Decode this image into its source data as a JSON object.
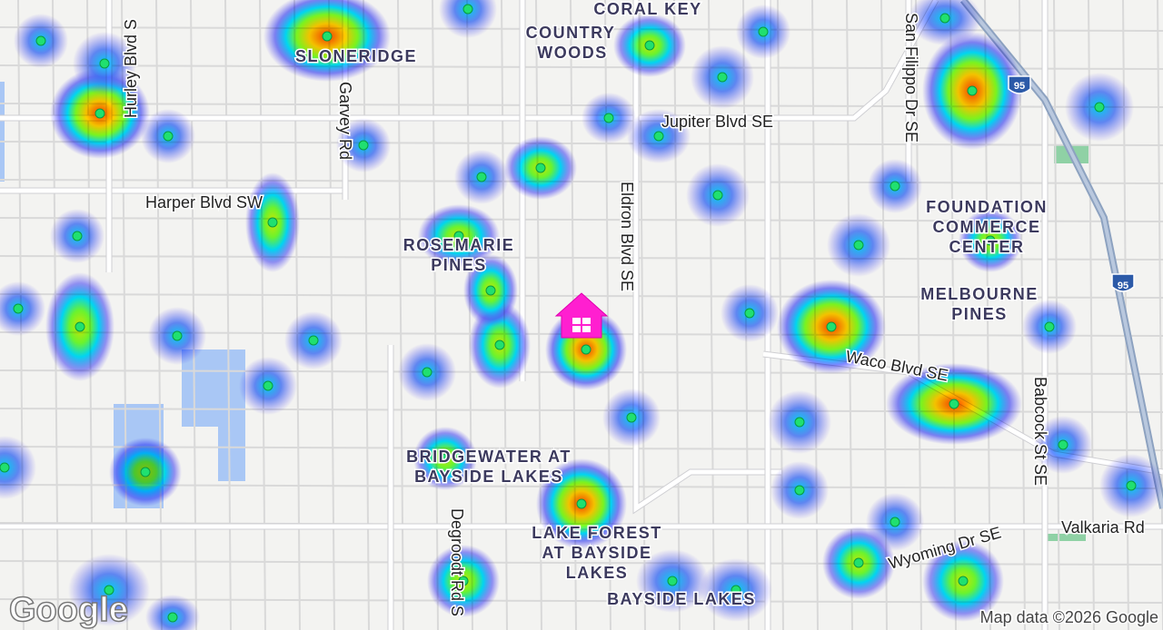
{
  "map": {
    "places": [
      {
        "lines": [
          "CORAL KEY"
        ]
      },
      {
        "lines": [
          "COUNTRY",
          "WOODS"
        ]
      },
      {
        "lines": [
          "SLONERIDGE"
        ]
      },
      {
        "lines": [
          "ROSEMARIE",
          "PINES"
        ]
      },
      {
        "lines": [
          "FOUNDATION",
          "COMMERCE",
          "CENTER"
        ]
      },
      {
        "lines": [
          "MELBOURNE",
          "PINES"
        ]
      },
      {
        "lines": [
          "BRIDGEWATER AT",
          "BAYSIDE LAKES"
        ]
      },
      {
        "lines": [
          "LAKE FOREST",
          "AT BAYSIDE",
          "LAKES"
        ]
      },
      {
        "lines": [
          "BAYSIDE LAKES"
        ]
      }
    ],
    "streets": [
      "Hurley Blvd S",
      "Garvey Rd",
      "Jupiter Blvd SE",
      "Harper Blvd SW",
      "Eldron Blvd SE",
      "San Filippo Dr SE",
      "Waco Blvd SE",
      "Babcock St SE",
      "Degroodt Rd S",
      "Wyoming Dr SE",
      "Valkaria Rd"
    ],
    "highway_shields": [
      "95",
      "95"
    ],
    "logo": "Google",
    "attribution": "Map data ©2026 Google"
  }
}
